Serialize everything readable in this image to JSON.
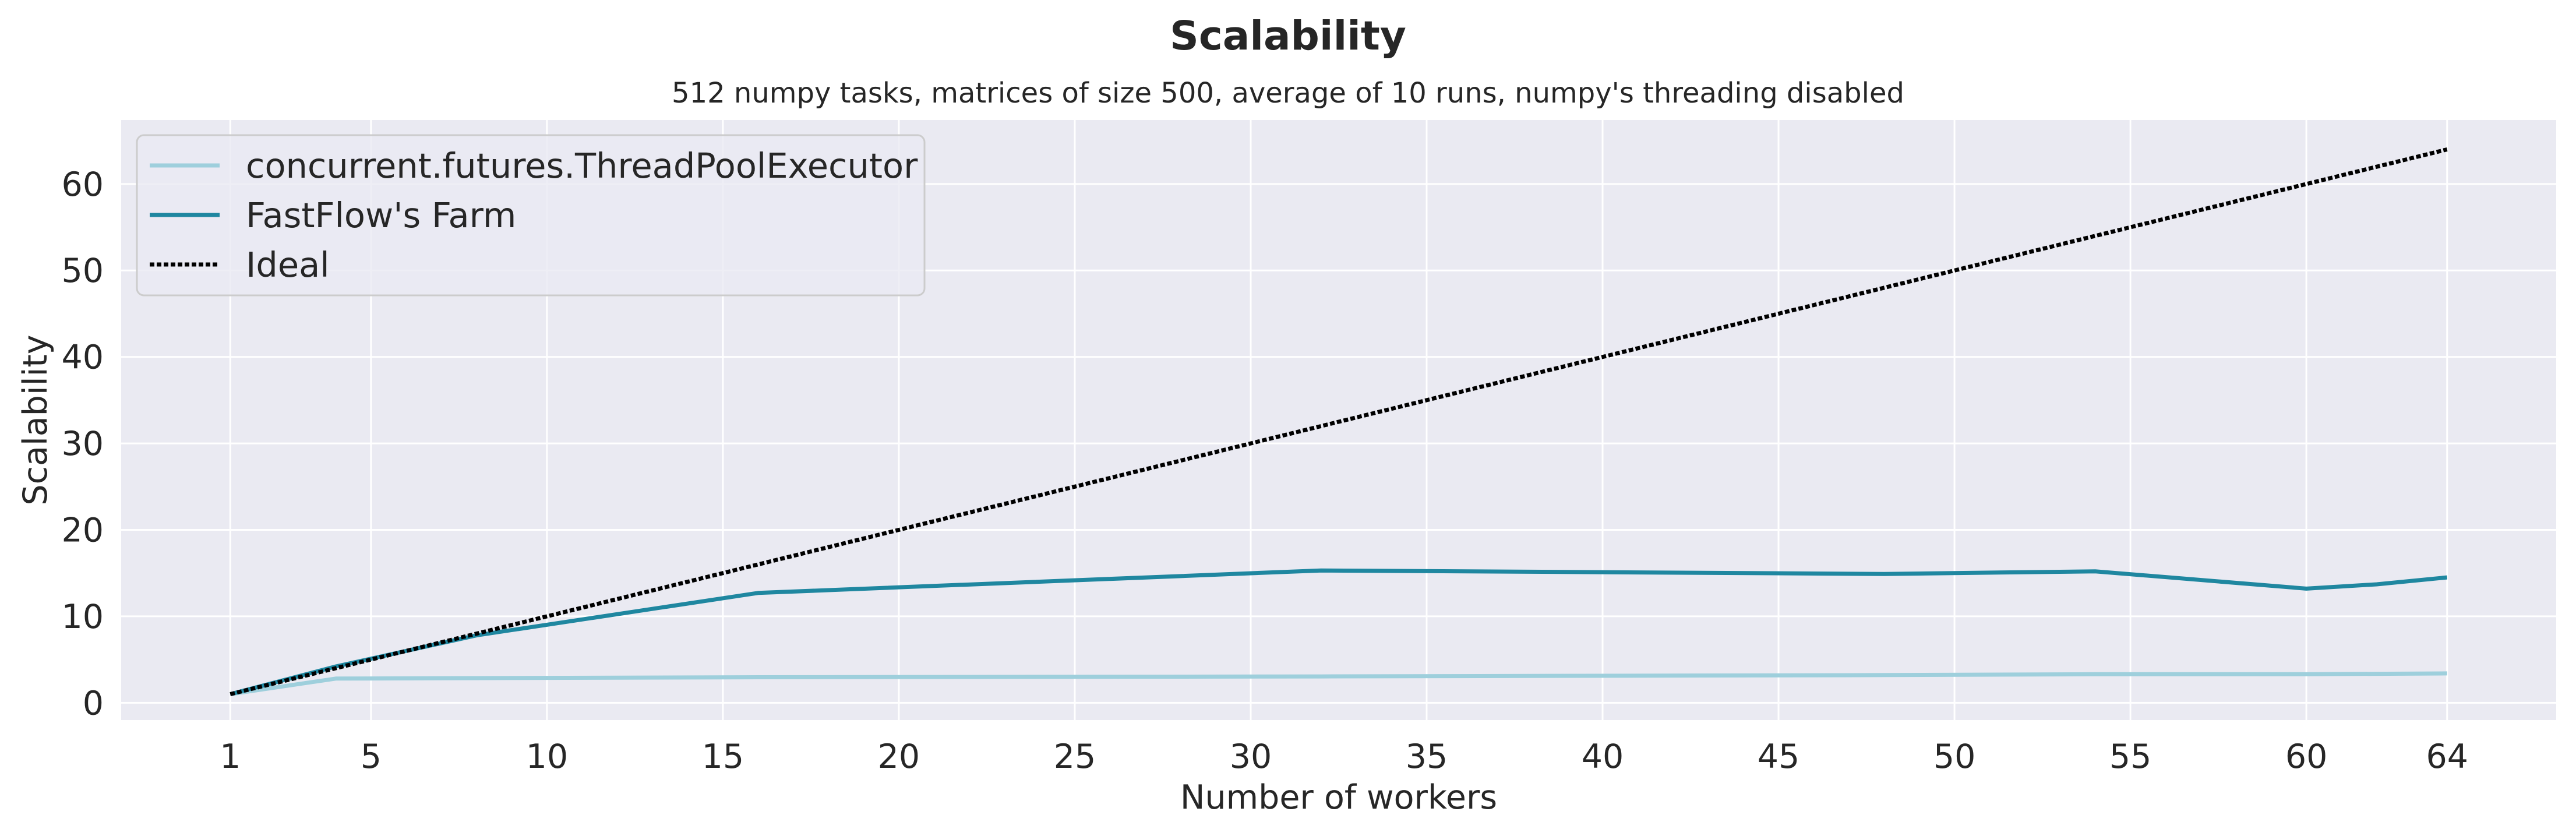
{
  "chart_data": {
    "type": "line",
    "title": "Scalability",
    "subtitle": "512 numpy tasks, matrices of size 500, average of 10 runs, numpy's threading disabled",
    "xlabel": "Number of workers",
    "ylabel": "Scalability",
    "x_ticks": [
      1,
      5,
      10,
      15,
      20,
      25,
      30,
      35,
      40,
      45,
      50,
      55,
      60,
      64
    ],
    "y_ticks": [
      0,
      10,
      20,
      30,
      40,
      50,
      60
    ],
    "xlim": [
      -2.1,
      67.1
    ],
    "ylim": [
      -2.0,
      67.4
    ],
    "grid": true,
    "legend_position": "top-left",
    "background": "#eaeaf2",
    "grid_color": "#ffffff",
    "series": [
      {
        "name": "concurrent.futures.ThreadPoolExecutor",
        "color": "#9ecfdc",
        "style": "solid",
        "x": [
          1,
          4,
          8,
          16,
          32,
          48,
          54,
          60,
          62,
          64
        ],
        "y": [
          1.0,
          2.8,
          2.85,
          2.95,
          3.05,
          3.2,
          3.3,
          3.3,
          3.35,
          3.4
        ]
      },
      {
        "name": "FastFlow's Farm",
        "color": "#1f87a0",
        "style": "solid",
        "x": [
          1,
          4,
          8,
          16,
          32,
          48,
          54,
          60,
          62,
          64
        ],
        "y": [
          1.0,
          4.2,
          7.8,
          12.7,
          15.3,
          14.9,
          15.2,
          13.2,
          13.7,
          14.5
        ]
      },
      {
        "name": "Ideal",
        "color": "#000000",
        "style": "dotted",
        "x": [
          1,
          64
        ],
        "y": [
          1,
          64
        ]
      }
    ]
  }
}
